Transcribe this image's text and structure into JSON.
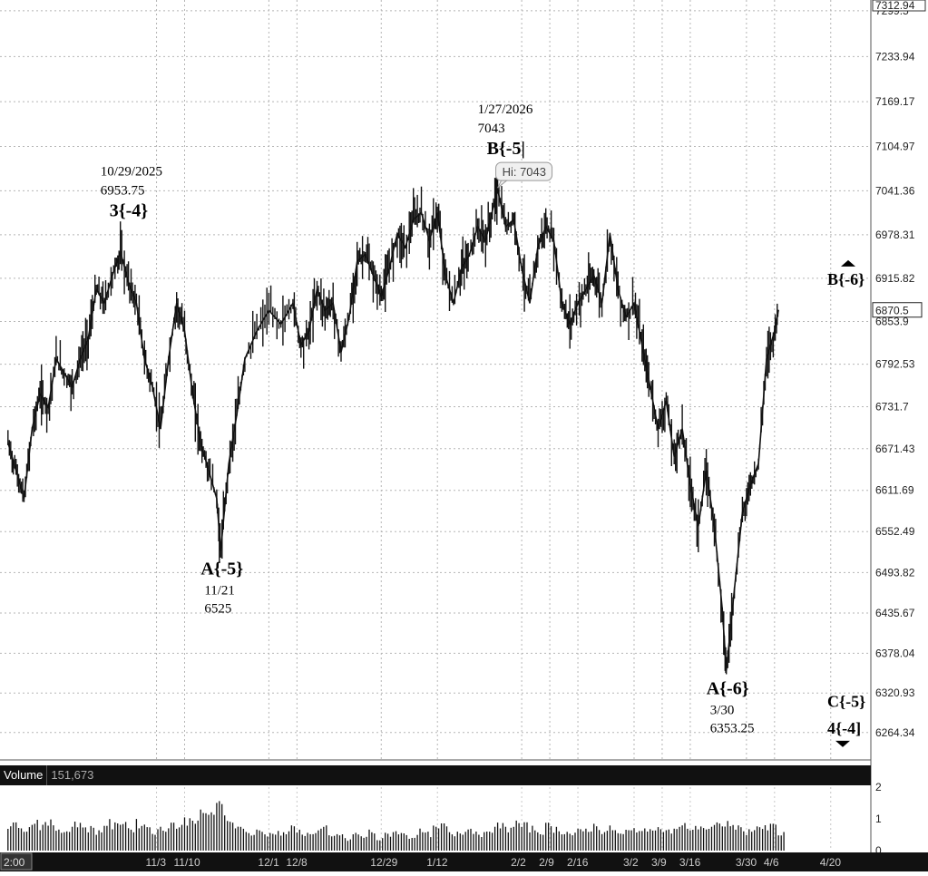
{
  "chart_data": {
    "type": "line",
    "title": "",
    "xlabel": "",
    "ylabel": "",
    "ylim": [
      6225,
      7315
    ],
    "y_ticks": [
      "7299.5",
      "7233.94",
      "7169.17",
      "7104.97",
      "7041.36",
      "6978.31",
      "6915.82",
      "6853.9",
      "6792.53",
      "6731.7",
      "6671.43",
      "6611.69",
      "6552.49",
      "6493.82",
      "6435.67",
      "6378.04",
      "6320.93",
      "6264.34"
    ],
    "y_tick_values": [
      7299.5,
      7233.94,
      7169.17,
      7104.97,
      7041.36,
      6978.31,
      6915.82,
      6853.9,
      6792.53,
      6731.7,
      6671.43,
      6611.69,
      6552.49,
      6493.82,
      6435.67,
      6378.04,
      6320.93,
      6264.34
    ],
    "top_price_label": "7312.94",
    "last_price_label": "6870.5",
    "x_tick_labels": [
      {
        "label": "2:00",
        "day": -30
      },
      {
        "label": "11/3",
        "day": 7
      },
      {
        "label": "11/10",
        "day": 14
      },
      {
        "label": "12/1",
        "day": 35
      },
      {
        "label": "12/8",
        "day": 42
      },
      {
        "label": "12/29",
        "day": 63
      },
      {
        "label": "1/12",
        "day": 77
      },
      {
        "label": "2/2",
        "day": 98
      },
      {
        "label": "2/9",
        "day": 105
      },
      {
        "label": "2/16",
        "day": 112
      },
      {
        "label": "3/2",
        "day": 126
      },
      {
        "label": "3/9",
        "day": 133
      },
      {
        "label": "3/16",
        "day": 140
      },
      {
        "label": "3/30",
        "day": 154
      },
      {
        "label": "4/6",
        "day": 161
      },
      {
        "label": "4/20",
        "day": 175
      }
    ],
    "series": [
      {
        "values": [
          [
            -30,
            6680
          ],
          [
            -28,
            6640
          ],
          [
            -26,
            6600
          ],
          [
            -24,
            6700
          ],
          [
            -22,
            6750
          ],
          [
            -20,
            6730
          ],
          [
            -18,
            6800
          ],
          [
            -16,
            6780
          ],
          [
            -14,
            6760
          ],
          [
            -12,
            6800
          ],
          [
            -10,
            6830
          ],
          [
            -8,
            6900
          ],
          [
            -6,
            6880
          ],
          [
            -4,
            6920
          ],
          [
            -2,
            6953.75
          ],
          [
            0,
            6910
          ],
          [
            2,
            6880
          ],
          [
            4,
            6800
          ],
          [
            6,
            6760
          ],
          [
            8,
            6700
          ],
          [
            10,
            6800
          ],
          [
            12,
            6880
          ],
          [
            14,
            6840
          ],
          [
            16,
            6750
          ],
          [
            18,
            6680
          ],
          [
            20,
            6640
          ],
          [
            22,
            6600
          ],
          [
            23,
            6525
          ],
          [
            25,
            6650
          ],
          [
            27,
            6720
          ],
          [
            29,
            6800
          ],
          [
            32,
            6840
          ],
          [
            35,
            6870
          ],
          [
            38,
            6850
          ],
          [
            41,
            6880
          ],
          [
            43,
            6820
          ],
          [
            45,
            6840
          ],
          [
            47,
            6900
          ],
          [
            49,
            6870
          ],
          [
            51,
            6880
          ],
          [
            53,
            6810
          ],
          [
            55,
            6860
          ],
          [
            57,
            6940
          ],
          [
            59,
            6950
          ],
          [
            61,
            6920
          ],
          [
            63,
            6890
          ],
          [
            65,
            6930
          ],
          [
            67,
            6980
          ],
          [
            69,
            6960
          ],
          [
            71,
            7000
          ],
          [
            73,
            7010
          ],
          [
            75,
            6970
          ],
          [
            77,
            7010
          ],
          [
            79,
            6920
          ],
          [
            81,
            6880
          ],
          [
            83,
            6930
          ],
          [
            85,
            6950
          ],
          [
            87,
            6990
          ],
          [
            89,
            6970
          ],
          [
            91,
            7020
          ],
          [
            92,
            7043
          ],
          [
            94,
            6990
          ],
          [
            96,
            7000
          ],
          [
            98,
            6930
          ],
          [
            100,
            6880
          ],
          [
            102,
            6960
          ],
          [
            104,
            6990
          ],
          [
            106,
            6970
          ],
          [
            108,
            6880
          ],
          [
            110,
            6850
          ],
          [
            112,
            6880
          ],
          [
            114,
            6900
          ],
          [
            116,
            6920
          ],
          [
            118,
            6880
          ],
          [
            120,
            6980
          ],
          [
            122,
            6900
          ],
          [
            124,
            6860
          ],
          [
            126,
            6880
          ],
          [
            128,
            6820
          ],
          [
            130,
            6760
          ],
          [
            132,
            6700
          ],
          [
            134,
            6740
          ],
          [
            136,
            6660
          ],
          [
            138,
            6700
          ],
          [
            140,
            6620
          ],
          [
            142,
            6560
          ],
          [
            144,
            6640
          ],
          [
            146,
            6560
          ],
          [
            148,
            6440
          ],
          [
            149,
            6353.25
          ],
          [
            151,
            6470
          ],
          [
            153,
            6580
          ],
          [
            155,
            6620
          ],
          [
            157,
            6650
          ],
          [
            159,
            6800
          ],
          [
            161,
            6840
          ],
          [
            162,
            6870.5
          ]
        ]
      }
    ],
    "volume": {
      "label": "Volume",
      "value": "151,673",
      "y_ticks": [
        "2",
        "1",
        "0"
      ],
      "values": [
        [
          -30,
          0.9
        ],
        [
          -28,
          1.0
        ],
        [
          -26,
          0.8
        ],
        [
          -24,
          1.1
        ],
        [
          -22,
          0.9
        ],
        [
          -20,
          1.0
        ],
        [
          -18,
          0.8
        ],
        [
          -16,
          0.7
        ],
        [
          -14,
          1.0
        ],
        [
          -12,
          0.9
        ],
        [
          -10,
          0.8
        ],
        [
          -8,
          0.7
        ],
        [
          -6,
          1.0
        ],
        [
          -4,
          0.9
        ],
        [
          -2,
          1.1
        ],
        [
          0,
          0.8
        ],
        [
          2,
          1.0
        ],
        [
          4,
          0.9
        ],
        [
          6,
          0.7
        ],
        [
          8,
          0.8
        ],
        [
          10,
          1.0
        ],
        [
          12,
          0.9
        ],
        [
          14,
          1.1
        ],
        [
          16,
          1.2
        ],
        [
          18,
          1.3
        ],
        [
          20,
          1.4
        ],
        [
          22,
          1.6
        ],
        [
          24,
          1.2
        ],
        [
          26,
          1.0
        ],
        [
          28,
          0.8
        ],
        [
          30,
          0.6
        ],
        [
          32,
          0.7
        ],
        [
          34,
          0.6
        ],
        [
          36,
          0.7
        ],
        [
          38,
          0.6
        ],
        [
          40,
          0.8
        ],
        [
          42,
          0.7
        ],
        [
          44,
          0.6
        ],
        [
          46,
          0.7
        ],
        [
          48,
          0.8
        ],
        [
          50,
          0.5
        ],
        [
          52,
          0.6
        ],
        [
          54,
          0.4
        ],
        [
          56,
          0.6
        ],
        [
          58,
          0.5
        ],
        [
          60,
          0.7
        ],
        [
          62,
          0.4
        ],
        [
          64,
          0.6
        ],
        [
          66,
          0.7
        ],
        [
          68,
          0.6
        ],
        [
          70,
          0.5
        ],
        [
          72,
          0.7
        ],
        [
          74,
          0.6
        ],
        [
          76,
          0.8
        ],
        [
          78,
          0.9
        ],
        [
          80,
          0.6
        ],
        [
          82,
          0.7
        ],
        [
          84,
          0.8
        ],
        [
          86,
          0.7
        ],
        [
          88,
          0.6
        ],
        [
          90,
          0.8
        ],
        [
          92,
          0.9
        ],
        [
          94,
          0.8
        ],
        [
          96,
          1.0
        ],
        [
          98,
          0.9
        ],
        [
          100,
          0.8
        ],
        [
          102,
          0.7
        ],
        [
          104,
          0.9
        ],
        [
          106,
          0.8
        ],
        [
          108,
          0.7
        ],
        [
          110,
          0.6
        ],
        [
          112,
          0.7
        ],
        [
          114,
          0.8
        ],
        [
          116,
          0.9
        ],
        [
          118,
          0.7
        ],
        [
          120,
          0.8
        ],
        [
          122,
          0.6
        ],
        [
          124,
          0.7
        ],
        [
          126,
          0.8
        ],
        [
          128,
          0.7
        ],
        [
          130,
          0.9
        ],
        [
          132,
          0.8
        ],
        [
          134,
          0.7
        ],
        [
          136,
          0.8
        ],
        [
          138,
          0.9
        ],
        [
          140,
          0.8
        ],
        [
          142,
          0.9
        ],
        [
          144,
          0.8
        ],
        [
          146,
          0.9
        ],
        [
          148,
          1.0
        ],
        [
          150,
          0.9
        ],
        [
          152,
          0.8
        ],
        [
          154,
          0.7
        ],
        [
          156,
          0.9
        ],
        [
          158,
          0.8
        ],
        [
          160,
          0.9
        ],
        [
          162,
          0.6
        ]
      ]
    },
    "annotations": [
      {
        "day": -2,
        "price": 6953.75,
        "text": "3{-4}",
        "lines": [
          "10/29/2025",
          "6953.75"
        ],
        "lines_pos": "above",
        "bold_line": "3{-4}"
      },
      {
        "day": 23,
        "price": 6525,
        "text": "A{-5}",
        "lines": [
          "11/21",
          "6525"
        ],
        "lines_pos": "below",
        "bold_line": "A{-5}"
      },
      {
        "day": 92,
        "price": 7043,
        "text": "B{-5|",
        "lines": [
          "1/27/2026",
          "7043"
        ],
        "lines_pos": "above",
        "bold_line": "B{-5|"
      },
      {
        "day": 149,
        "price": 6353.25,
        "text": "A{-6}",
        "lines": [
          "3/30",
          "6353.25"
        ],
        "lines_pos": "below",
        "bold_line": "A{-6}"
      }
    ],
    "tooltip": {
      "day": 92,
      "price": 7043,
      "text": "Hi: 7043"
    },
    "projection_labels": [
      {
        "text": "B{-6}",
        "price": 6915.82,
        "arrow": "up"
      },
      {
        "text": "C{-5}",
        "price": 6310,
        "arrow": "none"
      },
      {
        "text": "4{-4]",
        "price": 6272,
        "arrow": "down"
      }
    ]
  }
}
